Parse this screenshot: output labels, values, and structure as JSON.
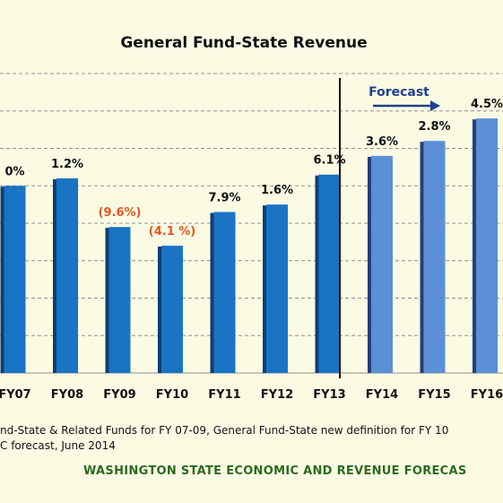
{
  "chart_data": {
    "type": "bar",
    "title": "General Fund-State Revenue",
    "categories": [
      "FY07",
      "FY08",
      "FY09",
      "FY10",
      "FY11",
      "FY12",
      "FY13",
      "FY14",
      "FY15",
      "FY16"
    ],
    "series": [
      {
        "values": [
          13.0,
          13.2,
          11.9,
          11.4,
          12.3,
          12.5,
          13.3,
          13.8,
          14.2,
          14.8
        ],
        "data_labels": [
          "0%",
          "1.2%",
          "(9.6%)",
          "(4.1 %)",
          "7.9%",
          "1.6%",
          "6.1%",
          "3.6%",
          "2.8%",
          "4.5%"
        ]
      }
    ],
    "forecast_start": "FY14",
    "forecast_label": "Forecast",
    "ylim": [
      8.0,
      16.0
    ],
    "grid": true,
    "colors": {
      "actual": "#1a74c4",
      "actual_side": "#0d3f73",
      "forecast": "#5b8fd6",
      "forecast_side": "#243f7a",
      "negative_label": "#e8541c",
      "label": "#111111",
      "forecast_arrow": "#1f3f8f"
    }
  },
  "footnote": {
    "line1": "nd-State & Related Funds for FY 07-09, General Fund-State new definition for FY 10",
    "line2": "C forecast, June 2014"
  },
  "source": "WASHINGTON STATE ECONOMIC AND REVENUE FORECAS"
}
